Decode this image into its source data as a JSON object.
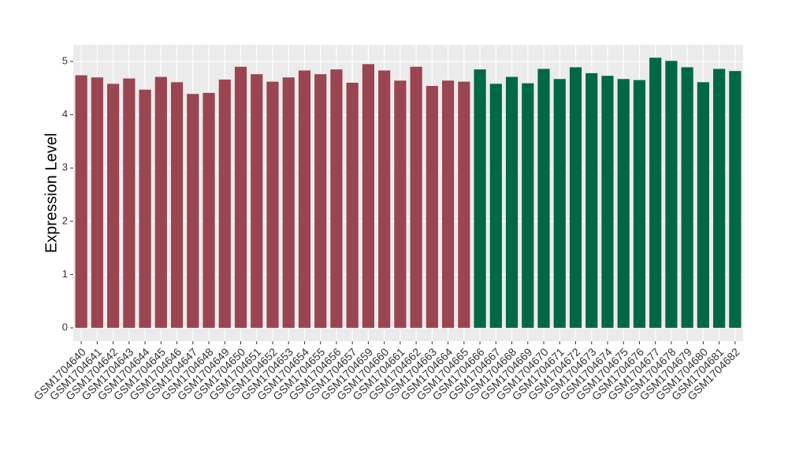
{
  "chart_data": {
    "type": "bar",
    "y_label": "Expression Level",
    "categories": [
      "GSM1704640",
      "GSM1704641",
      "GSM1704642",
      "GSM1704643",
      "GSM1704644",
      "GSM1704645",
      "GSM1704646",
      "GSM1704647",
      "GSM1704648",
      "GSM1704649",
      "GSM1704650",
      "GSM1704651",
      "GSM1704652",
      "GSM1704653",
      "GSM1704654",
      "GSM1704655",
      "GSM1704656",
      "GSM1704657",
      "GSM1704659",
      "GSM1704660",
      "GSM1704661",
      "GSM1704662",
      "GSM1704663",
      "GSM1704664",
      "GSM1704665",
      "GSM1704666",
      "GSM1704667",
      "GSM1704668",
      "GSM1704669",
      "GSM1704670",
      "GSM1704671",
      "GSM1704672",
      "GSM1704673",
      "GSM1704674",
      "GSM1704675",
      "GSM1704676",
      "GSM1704677",
      "GSM1704678",
      "GSM1704679",
      "GSM1704680",
      "GSM1704681",
      "GSM1704682"
    ],
    "values": [
      4.74,
      4.7,
      4.58,
      4.68,
      4.47,
      4.71,
      4.61,
      4.39,
      4.41,
      4.66,
      4.9,
      4.76,
      4.62,
      4.7,
      4.83,
      4.76,
      4.85,
      4.6,
      4.95,
      4.83,
      4.64,
      4.9,
      4.54,
      4.64,
      4.62,
      4.85,
      4.58,
      4.71,
      4.59,
      4.86,
      4.67,
      4.89,
      4.78,
      4.73,
      4.67,
      4.65,
      5.07,
      5.01,
      4.89,
      4.61,
      4.86,
      4.82
    ],
    "colors": [
      "#9a4550",
      "#9a4550",
      "#9a4550",
      "#9a4550",
      "#9a4550",
      "#9a4550",
      "#9a4550",
      "#9a4550",
      "#9a4550",
      "#9a4550",
      "#9a4550",
      "#9a4550",
      "#9a4550",
      "#9a4550",
      "#9a4550",
      "#9a4550",
      "#9a4550",
      "#9a4550",
      "#9a4550",
      "#9a4550",
      "#9a4550",
      "#9a4550",
      "#9a4550",
      "#9a4550",
      "#9a4550",
      "#006845",
      "#006845",
      "#006845",
      "#006845",
      "#006845",
      "#006845",
      "#006845",
      "#006845",
      "#006845",
      "#006845",
      "#006845",
      "#006845",
      "#006845",
      "#006845",
      "#006845",
      "#006845",
      "#006845"
    ],
    "ylim": [
      -0.25,
      5.31
    ],
    "yticks": [
      0,
      1,
      2,
      3,
      4,
      5
    ],
    "grid": true
  }
}
